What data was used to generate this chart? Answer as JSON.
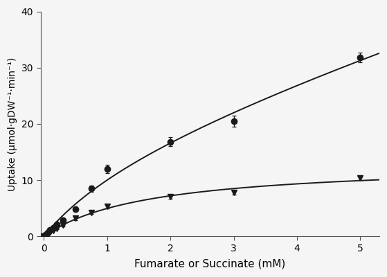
{
  "fumarate_x": [
    0.0,
    0.025,
    0.05,
    0.075,
    0.1,
    0.15,
    0.2,
    0.3,
    0.5,
    0.75,
    1.0,
    2.0,
    3.0,
    5.0
  ],
  "fumarate_y": [
    0.0,
    0.3,
    0.55,
    0.8,
    1.1,
    1.5,
    2.1,
    2.8,
    4.8,
    8.5,
    12.0,
    16.8,
    20.5,
    31.8
  ],
  "fumarate_err": [
    0.0,
    0.0,
    0.0,
    0.0,
    0.0,
    0.0,
    0.35,
    0.35,
    0.4,
    0.55,
    0.75,
    0.8,
    1.0,
    0.9
  ],
  "succinate_x": [
    0.0,
    0.025,
    0.05,
    0.075,
    0.1,
    0.15,
    0.2,
    0.3,
    0.5,
    0.75,
    1.0,
    2.0,
    3.0,
    5.0
  ],
  "succinate_y": [
    0.0,
    0.15,
    0.3,
    0.5,
    0.7,
    1.0,
    1.4,
    2.0,
    3.2,
    4.2,
    5.3,
    7.0,
    7.8,
    10.4
  ],
  "succinate_err": [
    0.0,
    0.0,
    0.0,
    0.0,
    0.0,
    0.0,
    0.2,
    0.2,
    0.3,
    0.3,
    0.4,
    0.35,
    0.4,
    0.35
  ],
  "xlabel": "Fumarate or Succinate (mM)",
  "ylabel": "Uptake (μmol·gDW⁻¹·min⁻¹)",
  "xlim": [
    -0.05,
    5.3
  ],
  "ylim": [
    0,
    40
  ],
  "xticks": [
    0,
    1,
    2,
    3,
    4,
    5
  ],
  "yticks": [
    0,
    10,
    20,
    30,
    40
  ],
  "line_color": "#1a1a1a",
  "marker_fumarate": "o",
  "marker_succinate": "v",
  "markersize": 6,
  "linewidth": 1.4,
  "background_color": "#f5f5f5"
}
